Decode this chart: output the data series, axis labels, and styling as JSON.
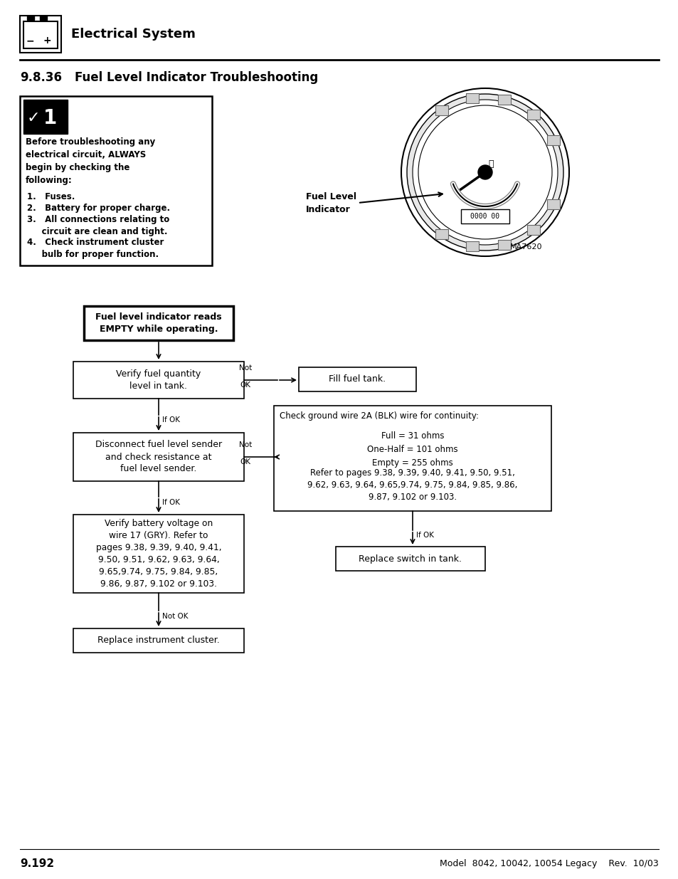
{
  "page_num": "9.192",
  "footer_text": "Model  8042, 10042, 10054 Legacy    Rev.  10/03",
  "section": "9.8.36",
  "section_title": "Fuel Level Indicator Troubleshooting",
  "header_title": "Electrical System",
  "image_label": "Fuel Level\nIndicator",
  "image_credit": "MA7620",
  "warning_header": "Before troubleshooting any\nelectrical circuit, ALWAYS\nbegin by checking the\nfollowing:",
  "box_start": "Fuel level indicator reads\nEMPTY while operating.",
  "box1": "Verify fuel quantity\nlevel in tank.",
  "box1_right": "Fill fuel tank.",
  "box1_arrow_label": "Not\nOK",
  "box1_down_label": "If OK",
  "box2": "Disconnect fuel level sender\nand check resistance at\nfuel level sender.",
  "box2_right_line1": "Check ground wire 2A (BLK) wire for continuity:",
  "box2_right_line2": "Full = 31 ohms\nOne-Half = 101 ohms\nEmpty = 255 ohms",
  "box2_right_line3": "Refer to pages 9.38, 9.39, 9.40, 9.41, 9.50, 9.51,\n9.62, 9.63, 9.64, 9.65,9.74, 9.75, 9.84, 9.85, 9.86,\n9.87, 9.102 or 9.103.",
  "box2_arrow_label": "Not\nOK",
  "box2_down_label": "If OK",
  "box2_right_down_label": "If OK",
  "box3": "Verify battery voltage on\nwire 17 (GRY). Refer to\npages 9.38, 9.39, 9.40, 9.41,\n9.50, 9.51, 9.62, 9.63, 9.64,\n9.65,9.74, 9.75, 9.84, 9.85,\n9.86, 9.87, 9.102 or 9.103.",
  "box3_right": "Replace switch in tank.",
  "box3_down_label": "Not OK",
  "box4": "Replace instrument cluster.",
  "figw": 9.54,
  "figh": 12.35,
  "dpi": 100
}
